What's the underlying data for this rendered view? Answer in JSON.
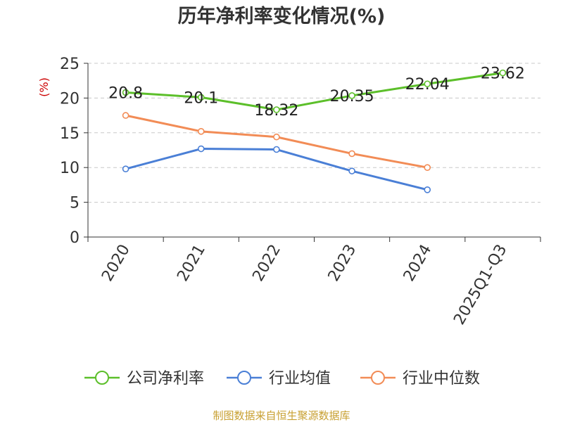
{
  "chart_data": {
    "type": "line",
    "title": "历年净利率变化情况(%)",
    "ylabel": "(%)",
    "categories": [
      "2020",
      "2021",
      "2022",
      "2023",
      "2024",
      "2025Q1-Q3"
    ],
    "ylim": [
      0,
      25
    ],
    "yticks": [
      0,
      5,
      10,
      15,
      20,
      25
    ],
    "grid": true,
    "legend_position": "bottom",
    "series": [
      {
        "name": "公司净利率",
        "color": "#5cbf2a",
        "values": [
          20.8,
          20.1,
          18.32,
          20.35,
          22.04,
          23.62
        ],
        "labels": [
          "20.8",
          "20.1",
          "18.32",
          "20.35",
          "22.04",
          "23.62"
        ]
      },
      {
        "name": "行业均值",
        "color": "#4a7fd6",
        "values": [
          9.8,
          12.7,
          12.6,
          9.5,
          6.8,
          null
        ]
      },
      {
        "name": "行业中位数",
        "color": "#f28c56",
        "values": [
          17.5,
          15.2,
          14.4,
          12.0,
          10.0,
          null
        ]
      }
    ]
  },
  "ylabel_color": "#cc0000",
  "footer": {
    "source": "制图数据来自恒生聚源数据库",
    "color": "#c8a032"
  }
}
